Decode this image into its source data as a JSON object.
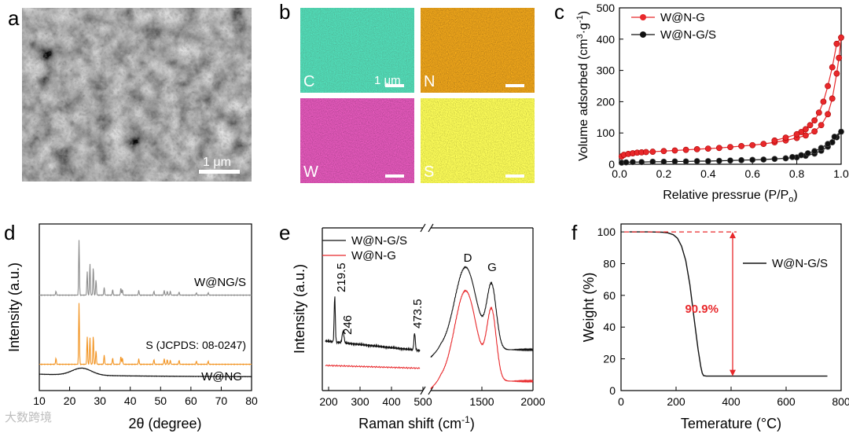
{
  "panels": {
    "a": {
      "label": "a",
      "scale_bar": "1 μm"
    },
    "b": {
      "label": "b",
      "scale_bar": "1 μm",
      "maps": [
        {
          "element": "C",
          "color": "#1f8a6a",
          "bg": "#0b3a2c"
        },
        {
          "element": "N",
          "color": "#b3621f",
          "bg": "#3a1e08"
        },
        {
          "element": "W",
          "color": "#9a2f6a",
          "bg": "#35102a"
        },
        {
          "element": "S",
          "color": "#c8c41e",
          "bg": "#4a4a06"
        }
      ]
    },
    "c": {
      "label": "c"
    },
    "d": {
      "label": "d"
    },
    "e": {
      "label": "e"
    },
    "f": {
      "label": "f"
    }
  },
  "chart_data": [
    {
      "id": "c",
      "type": "line",
      "xlabel": "Relative pressrue (P/P",
      "xlabel_sub": "o",
      "xlabel_end": ")",
      "ylabel": "Volume adsorbed (cm",
      "ylabel_sup1": "3",
      "ylabel_mid": "·g",
      "ylabel_sup2": "-1",
      "ylabel_end": ")",
      "xlim": [
        0.0,
        1.0
      ],
      "ylim": [
        0,
        500
      ],
      "xticks": [
        "0.0",
        "0.2",
        "0.4",
        "0.6",
        "0.8",
        "1.0"
      ],
      "yticks": [
        "0",
        "100",
        "200",
        "300",
        "400",
        "500"
      ],
      "legend": [
        "W@N-G",
        "W@N-G/S"
      ],
      "series": [
        {
          "name": "W@N-G",
          "color": "#e8282b",
          "x": [
            0.01,
            0.02,
            0.04,
            0.06,
            0.08,
            0.1,
            0.12,
            0.15,
            0.2,
            0.25,
            0.3,
            0.35,
            0.4,
            0.45,
            0.5,
            0.55,
            0.6,
            0.65,
            0.7,
            0.75,
            0.8,
            0.84,
            0.88,
            0.91,
            0.94,
            0.96,
            0.98,
            0.99,
            1.0,
            0.98,
            0.96,
            0.94,
            0.92,
            0.9,
            0.88,
            0.86,
            0.84,
            0.82,
            0.8,
            0.75,
            0.7
          ],
          "y": [
            25,
            30,
            33,
            35,
            37,
            38,
            39,
            40,
            42,
            44,
            46,
            48,
            50,
            52,
            55,
            58,
            61,
            65,
            70,
            76,
            84,
            92,
            105,
            125,
            160,
            210,
            290,
            340,
            405,
            385,
            310,
            250,
            200,
            165,
            140,
            125,
            112,
            103,
            96,
            85,
            76
          ]
        },
        {
          "name": "W@N-G/S",
          "color": "#111111",
          "x": [
            0.01,
            0.03,
            0.06,
            0.1,
            0.15,
            0.2,
            0.25,
            0.3,
            0.35,
            0.4,
            0.45,
            0.5,
            0.55,
            0.6,
            0.65,
            0.7,
            0.75,
            0.8,
            0.84,
            0.88,
            0.91,
            0.94,
            0.96,
            0.98,
            1.0,
            0.97,
            0.94,
            0.91,
            0.88,
            0.85,
            0.82,
            0.78
          ],
          "y": [
            5,
            6,
            7,
            7,
            8,
            8,
            9,
            9,
            10,
            10,
            11,
            12,
            13,
            14,
            15,
            17,
            19,
            22,
            27,
            34,
            43,
            56,
            70,
            86,
            104,
            88,
            65,
            52,
            42,
            35,
            29,
            23
          ]
        }
      ]
    },
    {
      "id": "d",
      "type": "line",
      "xlabel": "2θ (degree)",
      "ylabel": "Intensity (a.u.)",
      "xlim": [
        10,
        80
      ],
      "xticks": [
        "10",
        "20",
        "30",
        "40",
        "50",
        "60",
        "70",
        "80"
      ],
      "annotations": [
        "W@NG/S",
        "S (JCPDS: 08-0247)",
        "W@NG"
      ],
      "series": [
        {
          "name": "W@NG/S",
          "color": "#8c8c8c",
          "peaks": [
            [
              15.5,
              5
            ],
            [
              23.1,
              70
            ],
            [
              25.8,
              30
            ],
            [
              26.7,
              40
            ],
            [
              27.8,
              36
            ],
            [
              28.7,
              20
            ],
            [
              31.4,
              10
            ],
            [
              34.2,
              7
            ],
            [
              36.9,
              9
            ],
            [
              37.4,
              7
            ],
            [
              42.8,
              6
            ],
            [
              47.8,
              5
            ],
            [
              51.2,
              6
            ],
            [
              52.2,
              5
            ],
            [
              53.2,
              5
            ],
            [
              56.1,
              4
            ],
            [
              61.8,
              3
            ],
            [
              65.7,
              3
            ]
          ]
        },
        {
          "name": "S (JCPDS: 08-0247)",
          "color": "#f29422",
          "peaks": [
            [
              15.5,
              8
            ],
            [
              23.1,
              78
            ],
            [
              25.8,
              35
            ],
            [
              26.7,
              34
            ],
            [
              27.8,
              37
            ],
            [
              28.7,
              18
            ],
            [
              31.4,
              12
            ],
            [
              34.2,
              8
            ],
            [
              36.9,
              10
            ],
            [
              37.4,
              8
            ],
            [
              42.8,
              7
            ],
            [
              47.8,
              6
            ],
            [
              51.2,
              7
            ],
            [
              52.2,
              6
            ],
            [
              53.2,
              5
            ],
            [
              56.1,
              5
            ],
            [
              61.8,
              4
            ],
            [
              65.7,
              4
            ]
          ]
        },
        {
          "name": "W@NG",
          "color": "#111111",
          "broad_peak": 24
        }
      ]
    },
    {
      "id": "e",
      "type": "line",
      "xlabel": "Raman shift (cm",
      "xlabel_sup": "-1",
      "xlabel_end": ")",
      "ylabel": "Intensity (a.u.)",
      "xticks_left": [
        "200",
        "300",
        "400",
        "500"
      ],
      "xticks_right": [
        "1500",
        "2000"
      ],
      "legend": [
        "W@N-G/S",
        "W@N-G"
      ],
      "annotations": [
        "219.5",
        "246",
        "473.5",
        "D",
        "G"
      ],
      "series": [
        {
          "name": "W@N-G/S",
          "color": "#111111"
        },
        {
          "name": "W@N-G",
          "color": "#e8282b"
        }
      ]
    },
    {
      "id": "f",
      "type": "line",
      "xlabel": "Temerature (°C)",
      "ylabel": "Weight (%)",
      "xlim": [
        0,
        800
      ],
      "ylim": [
        0,
        100
      ],
      "xticks": [
        "0",
        "200",
        "400",
        "600",
        "800"
      ],
      "yticks": [
        "0",
        "20",
        "40",
        "60",
        "80",
        "100"
      ],
      "legend": [
        "W@N-G/S"
      ],
      "annotations": [
        "90.9%"
      ],
      "annotation_color": "#e8282b",
      "series": [
        {
          "name": "W@N-G/S",
          "color": "#111111",
          "x": [
            30,
            100,
            150,
            170,
            190,
            205,
            220,
            235,
            250,
            265,
            280,
            290,
            295,
            300,
            310,
            350,
            450,
            600,
            750
          ],
          "y": [
            100,
            100,
            99.8,
            99.4,
            98.2,
            96,
            91,
            82,
            67,
            46,
            26,
            15,
            11,
            9.4,
            9.1,
            9.1,
            9.1,
            9.1,
            9.1
          ]
        }
      ]
    }
  ],
  "watermark": "大数跨境"
}
